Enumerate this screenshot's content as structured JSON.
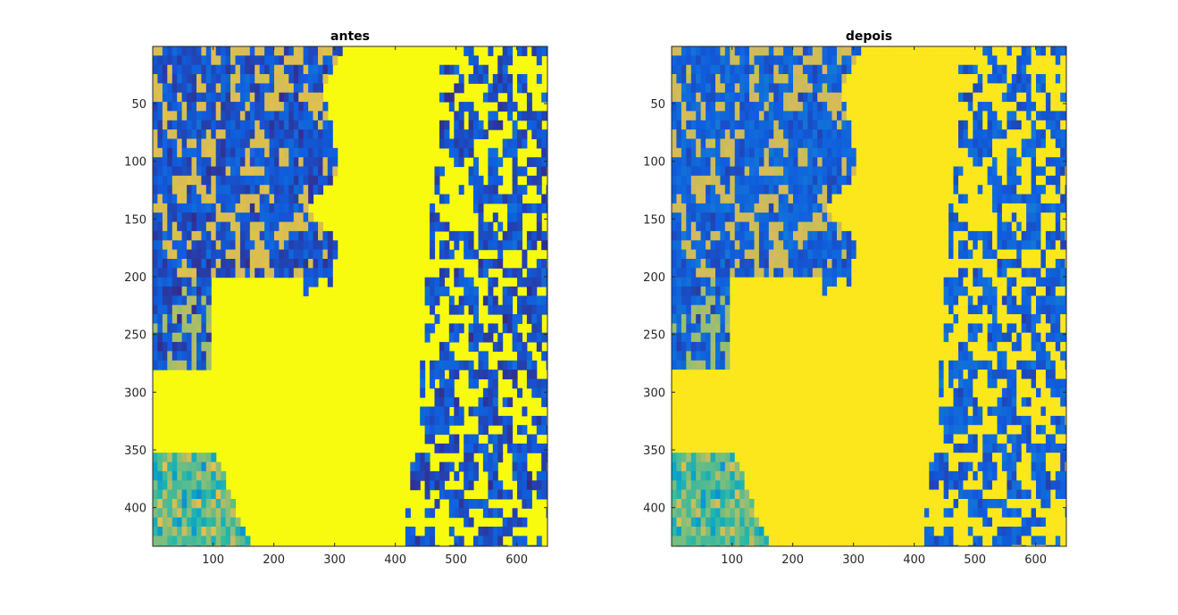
{
  "chart_data": [
    {
      "type": "heatmap",
      "title": "antes",
      "xlabel": "",
      "ylabel": "",
      "xlim": [
        0.5,
        650.5
      ],
      "ylim": [
        0.5,
        433.5
      ],
      "y_reversed": true,
      "xticks": [
        100,
        200,
        300,
        400,
        500,
        600
      ],
      "yticks": [
        50,
        100,
        150,
        200,
        250,
        300,
        350,
        400
      ],
      "colormap": [
        "#352a87",
        "#0f5cdd",
        "#1481d6",
        "#06a4ca",
        "#2eb7a4",
        "#87bf77",
        "#d1bb59",
        "#fec832",
        "#f9fb0e"
      ],
      "grid": false,
      "colorbar": false
    },
    {
      "type": "heatmap",
      "title": "depois",
      "xlabel": "",
      "ylabel": "",
      "xlim": [
        0.5,
        650.5
      ],
      "ylim": [
        0.5,
        433.5
      ],
      "y_reversed": true,
      "xticks": [
        100,
        200,
        300,
        400,
        500,
        600
      ],
      "yticks": [
        50,
        100,
        150,
        200,
        250,
        300,
        350,
        400
      ],
      "colormap": [
        "#352a87",
        "#0f5cdd",
        "#1481d6",
        "#06a4ca",
        "#2eb7a4",
        "#87bf77",
        "#d1bb59",
        "#fec832",
        "#f9fb0e"
      ],
      "grid": false,
      "colorbar": false
    }
  ]
}
